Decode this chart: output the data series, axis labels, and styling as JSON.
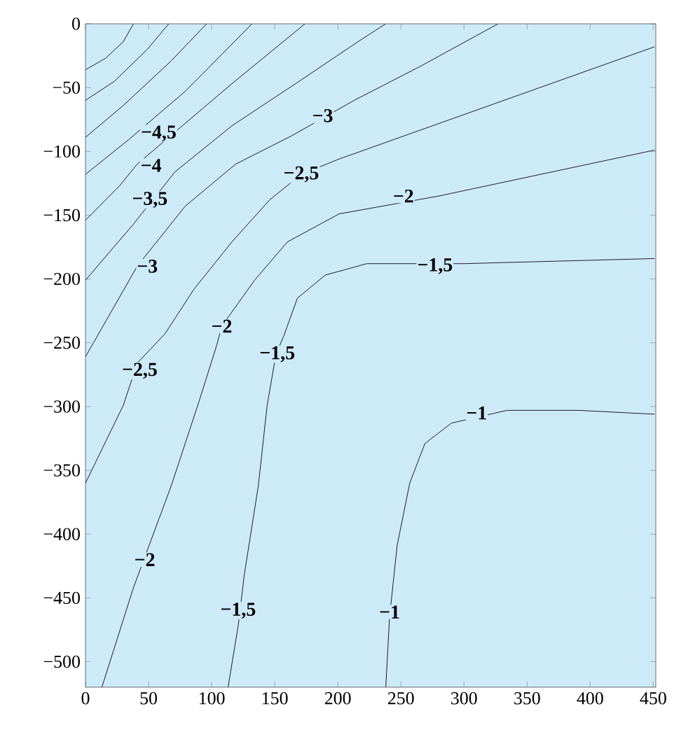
{
  "chart_data": {
    "type": "line",
    "marker": "none",
    "line_style": "solid",
    "xlim": [
      0,
      452
    ],
    "ylim": [
      -520,
      0
    ],
    "xticks": [
      0,
      50,
      100,
      150,
      200,
      250,
      300,
      350,
      400,
      450
    ],
    "yticks": [
      {
        "value": 0,
        "label": "0"
      },
      {
        "value": -50,
        "label": "−50"
      },
      {
        "value": -100,
        "label": "−100"
      },
      {
        "value": -150,
        "label": "−150"
      },
      {
        "value": -200,
        "label": "−200"
      },
      {
        "value": -250,
        "label": "−250"
      },
      {
        "value": -300,
        "label": "−300"
      },
      {
        "value": -350,
        "label": "−350"
      },
      {
        "value": -400,
        "label": "−400"
      },
      {
        "value": -450,
        "label": "−450"
      },
      {
        "value": -500,
        "label": "−500"
      }
    ],
    "series": [
      {
        "color": "#1a1a33",
        "x": [
          0,
          16,
          30,
          38
        ],
        "values": [
          -36,
          -27,
          -14,
          0
        ]
      },
      {
        "color": "#1a1a33",
        "x": [
          0,
          23,
          49,
          66
        ],
        "values": [
          -60,
          -45,
          -20,
          0
        ]
      },
      {
        "color": "#1a1a33",
        "x": [
          0,
          30,
          68,
          96
        ],
        "values": [
          -89,
          -64,
          -29,
          0
        ]
      },
      {
        "color": "#1a1a33",
        "x": [
          0,
          34,
          79,
          132
        ],
        "values": [
          -118,
          -91,
          -53,
          0
        ]
      },
      {
        "color": "#1a1a33",
        "x": [
          0,
          27,
          41,
          116,
          174
        ],
        "values": [
          -154,
          -127,
          -110,
          -47,
          0
        ]
      },
      {
        "color": "#1a1a33",
        "x": [
          0,
          38,
          71,
          116,
          171,
          216,
          238
        ],
        "values": [
          -201,
          -157,
          -116,
          -80,
          -44,
          -14,
          0
        ]
      },
      {
        "color": "#1a1a33",
        "x": [
          0,
          41,
          79,
          119,
          163,
          213,
          266,
          327
        ],
        "values": [
          -261,
          -190,
          -143,
          -110,
          -88,
          -60,
          -33,
          0
        ]
      },
      {
        "color": "#1a1a33",
        "x": [
          0,
          30,
          41,
          63,
          86,
          116,
          146,
          171,
          201,
          451
        ],
        "values": [
          -360,
          -299,
          -266,
          -243,
          -208,
          -171,
          -138,
          -118,
          -106,
          -18
        ]
      },
      {
        "color": "#1a1a33",
        "x": [
          13,
          38,
          47,
          68,
          90,
          104,
          108,
          134,
          160,
          201,
          280,
          451
        ],
        "values": [
          -520,
          -442,
          -418,
          -362,
          -296,
          -252,
          -237,
          -201,
          -171,
          -149,
          -135,
          -99
        ]
      },
      {
        "color": "#1a1a33",
        "x": [
          113,
          121,
          126,
          137,
          144,
          151,
          157,
          168,
          190,
          223,
          300,
          451
        ],
        "values": [
          -520,
          -472,
          -431,
          -362,
          -299,
          -259,
          -245,
          -215,
          -197,
          -188,
          -188,
          -184
        ]
      },
      {
        "color": "#1a1a33",
        "x": [
          238,
          241,
          247,
          257,
          269,
          290,
          310,
          334,
          391,
          451
        ],
        "values": [
          -520,
          -465,
          -409,
          -360,
          -329,
          -313,
          null,
          -303,
          -303,
          -306
        ]
      }
    ],
    "annotations": [
      {
        "text": "−4,5",
        "x": 58,
        "y": -86
      },
      {
        "text": "−4",
        "x": 52,
        "y": -111
      },
      {
        "text": "−3,5",
        "x": 51,
        "y": -138
      },
      {
        "text": "−3",
        "x": 49,
        "y": -190
      },
      {
        "text": "−2,5",
        "x": 43,
        "y": -272
      },
      {
        "text": "−2",
        "x": 47,
        "y": -420
      },
      {
        "text": "−1,5",
        "x": 121,
        "y": -460
      },
      {
        "text": "−1",
        "x": 241,
        "y": -461
      },
      {
        "text": "−3",
        "x": 188,
        "y": -72
      },
      {
        "text": "−2,5",
        "x": 171,
        "y": -118
      },
      {
        "text": "−2",
        "x": 252,
        "y": -135
      },
      {
        "text": "−1,5",
        "x": 277,
        "y": -190
      },
      {
        "text": "−1",
        "x": 310,
        "y": -305
      },
      {
        "text": "−2",
        "x": 108,
        "y": -237
      },
      {
        "text": "−1,5",
        "x": 152,
        "y": -259
      }
    ]
  }
}
